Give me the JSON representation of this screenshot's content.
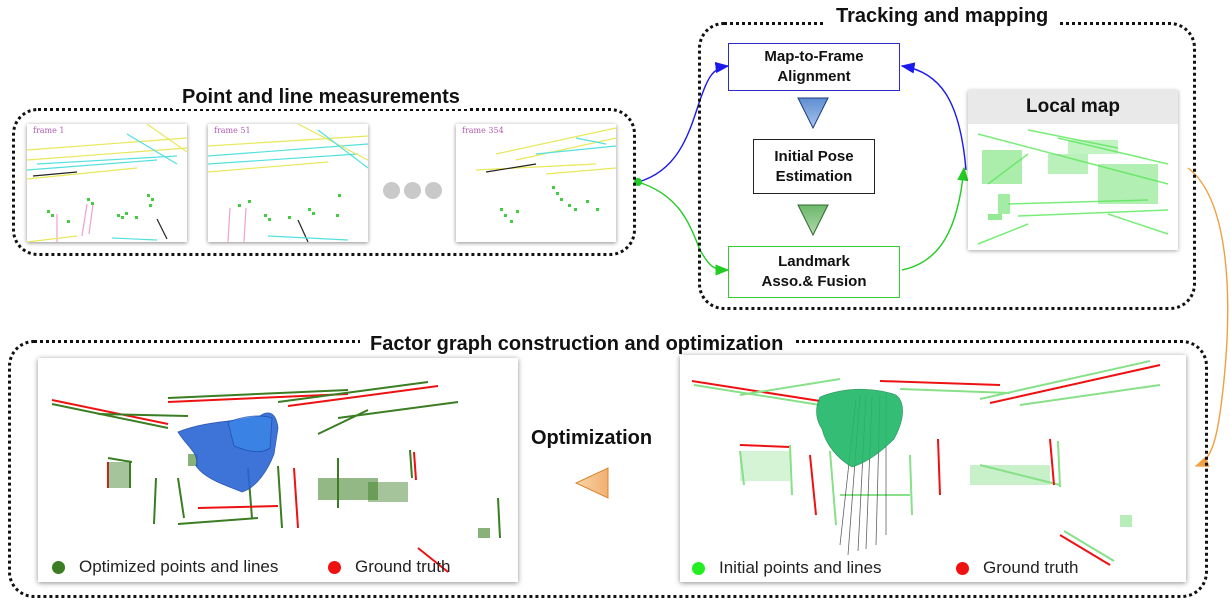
{
  "titles": {
    "measurements": "Point and line measurements",
    "tracking": "Tracking and mapping",
    "factor_graph": "Factor graph construction and optimization"
  },
  "frames": [
    "frame 1",
    "frame 51",
    "frame 354"
  ],
  "pipeline": {
    "alignment": "Map-to-Frame\nAlignment",
    "pose": "Initial Pose\nEstimation",
    "landmark": "Landmark\nAsso.& Fusion"
  },
  "local_map": {
    "title": "Local map"
  },
  "optimization_label": "Optimization",
  "legend_left": {
    "points": "Optimized points and lines",
    "truth": "Ground truth"
  },
  "legend_right": {
    "points": "Initial points and lines",
    "truth": "Ground truth"
  },
  "colors": {
    "alignment_border": "#2b2bc8",
    "landmark_border": "#33cc33",
    "blue_arrow": "#1a1aee",
    "green_arrow": "#22cc22",
    "orange_arrow": "#f0a040",
    "optimized_points": "#3a7d22",
    "ground_truth": "#ee1111",
    "initial_points": "#22ee22"
  },
  "icons": {
    "ellipsis": "three-grey-dots-icon",
    "arrow_down_blue": "triangle-down-blue-icon",
    "arrow_down_green": "triangle-down-green-icon",
    "arrow_left_orange": "triangle-left-orange-icon"
  }
}
